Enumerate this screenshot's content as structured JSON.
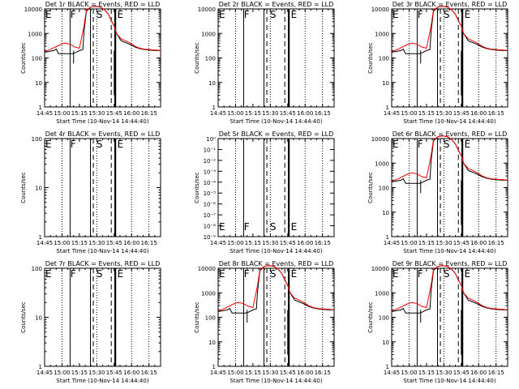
{
  "figure": {
    "time_label": "Start Time (10-Nov-14 14:44:40)",
    "x_ticks": [
      "14:45",
      "15:00",
      "15:15",
      "15:30",
      "15:45",
      "16:00",
      "16:15"
    ],
    "y_label": "Counts/sec",
    "interval_letters": [
      "E",
      "F",
      "S",
      "E"
    ],
    "colors": {
      "events": "#000000",
      "lld": "#ff0000",
      "background": "#ffffff"
    }
  },
  "chart_data": [
    {
      "type": "line",
      "title": "Det 1r BLACK = Events, RED = LLD",
      "xlabel": "Start Time (10-Nov-14 14:44:40)",
      "ylabel": "Counts/sec",
      "x_range": [
        "14:45",
        "16:25"
      ],
      "y_scale": "log",
      "y_ticks": [
        "1",
        "10",
        "100",
        "1000",
        "10000"
      ],
      "letters": [
        "E",
        "F",
        "S",
        "E"
      ],
      "empty": false,
      "spikes": true
    },
    {
      "type": "line",
      "title": "Det 2r BLACK = Events, RED = LLD",
      "xlabel": "Start Time (10-Nov-14 14:44:40)",
      "ylabel": "Counts/sec",
      "x_range": [
        "14:45",
        "16:25"
      ],
      "y_scale": "log",
      "y_ticks": [
        "1",
        "10",
        "100",
        "1000",
        "10000"
      ],
      "letters": [
        "E",
        "F",
        "S",
        "E"
      ],
      "empty": true
    },
    {
      "type": "line",
      "title": "Det 3r BLACK = Events, RED = LLD",
      "xlabel": "Start Time (10-Nov-14 14:44:40)",
      "ylabel": "Counts/sec",
      "x_range": [
        "14:45",
        "16:25"
      ],
      "y_scale": "log",
      "y_ticks": [
        "1",
        "10",
        "100",
        "1000",
        "10000"
      ],
      "letters": [
        "E",
        "F",
        "S",
        "E"
      ],
      "empty": false,
      "spikes": true
    },
    {
      "type": "line",
      "title": "Det 4r BLACK = Events, RED = LLD",
      "xlabel": "Start Time (10-Nov-14 14:44:40)",
      "ylabel": "Counts/sec",
      "x_range": [
        "14:45",
        "16:25"
      ],
      "y_scale": "log",
      "y_ticks": [
        "1",
        "10",
        "100"
      ],
      "letters": [
        "E",
        "F",
        "S",
        "E"
      ],
      "empty": true
    },
    {
      "type": "line",
      "title": "Det 5r BLACK = Events, RED = LLD",
      "xlabel": "Start Time (10-Nov-14 14:44:40)",
      "ylabel": "Counts/sec",
      "x_range": [
        "14:45",
        "16:25"
      ],
      "y_scale": "log",
      "y_ticks": [
        "10⁻⁹",
        "10⁻⁸",
        "10⁻⁷",
        "10⁻⁶",
        "10⁻⁵",
        "10⁻⁴",
        "10⁻³",
        "10⁻²",
        "10⁻¹",
        "10⁰"
      ],
      "letters": [
        "E",
        "F",
        "S",
        "E"
      ],
      "empty": true
    },
    {
      "type": "line",
      "title": "Det 6r BLACK = Events, RED = LLD",
      "xlabel": "Start Time (10-Nov-14 14:44:40)",
      "ylabel": "Counts/sec",
      "x_range": [
        "14:45",
        "16:25"
      ],
      "y_scale": "log",
      "y_ticks": [
        "1",
        "10",
        "100",
        "1000",
        "10000"
      ],
      "letters": [
        "E",
        "F",
        "S",
        "E"
      ],
      "empty": false,
      "spikes": true
    },
    {
      "type": "line",
      "title": "Det 7r BLACK = Events, RED = LLD",
      "xlabel": "Start Time (10-Nov-14 14:44:40)",
      "ylabel": "Counts/sec",
      "x_range": [
        "14:45",
        "16:25"
      ],
      "y_scale": "log",
      "y_ticks": [
        "1",
        "10",
        "100"
      ],
      "letters": [
        "E",
        "F",
        "S",
        "E"
      ],
      "empty": true
    },
    {
      "type": "line",
      "title": "Det 8r BLACK = Events, RED = LLD",
      "xlabel": "Start Time (10-Nov-14 14:44:40)",
      "ylabel": "Counts/sec",
      "x_range": [
        "14:45",
        "16:25"
      ],
      "y_scale": "log",
      "y_ticks": [
        "1",
        "10",
        "100",
        "1000",
        "10000"
      ],
      "letters": [
        "E",
        "F",
        "S",
        "E"
      ],
      "empty": false,
      "spikes": true
    },
    {
      "type": "line",
      "title": "Det 9r BLACK = Events, RED = LLD",
      "xlabel": "Start Time (10-Nov-14 14:44:40)",
      "ylabel": "Counts/sec",
      "x_range": [
        "14:45",
        "16:25"
      ],
      "y_scale": "log",
      "y_ticks": [
        "1",
        "10",
        "100",
        "1000",
        "10000"
      ],
      "letters": [
        "E",
        "F",
        "S",
        "E"
      ],
      "empty": false,
      "spikes": true
    }
  ],
  "series_shape": {
    "lld": [
      [
        0,
        180
      ],
      [
        5,
        220
      ],
      [
        10,
        290
      ],
      [
        15,
        380
      ],
      [
        18,
        400
      ],
      [
        22,
        360
      ],
      [
        26,
        280
      ],
      [
        30,
        250
      ],
      [
        34,
        2000
      ],
      [
        36,
        9000
      ],
      [
        40,
        12000
      ],
      [
        44,
        13000
      ],
      [
        48,
        12000
      ],
      [
        52,
        9000
      ],
      [
        55,
        6000
      ],
      [
        58,
        3000
      ],
      [
        60,
        2000
      ],
      [
        62,
        1000
      ],
      [
        66,
        600
      ],
      [
        70,
        500
      ],
      [
        74,
        400
      ],
      [
        78,
        300
      ],
      [
        82,
        250
      ],
      [
        86,
        230
      ],
      [
        90,
        220
      ],
      [
        96,
        210
      ],
      [
        100,
        200
      ]
    ],
    "events": [
      [
        0,
        170
      ],
      [
        5,
        190
      ],
      [
        8,
        200
      ],
      [
        10,
        230
      ],
      [
        12,
        150
      ],
      [
        16,
        150
      ],
      [
        20,
        150
      ],
      [
        24,
        150
      ],
      [
        26,
        160
      ],
      [
        30,
        200
      ],
      [
        33,
        220
      ],
      [
        34,
        1200
      ],
      [
        36,
        8000
      ],
      [
        40,
        12000
      ],
      [
        44,
        13000
      ],
      [
        48,
        12000
      ],
      [
        52,
        9000
      ],
      [
        55,
        6000
      ],
      [
        58,
        3000
      ],
      [
        60,
        2000
      ],
      [
        62,
        1000
      ],
      [
        66,
        500
      ],
      [
        70,
        420
      ],
      [
        74,
        350
      ],
      [
        78,
        280
      ],
      [
        82,
        240
      ],
      [
        86,
        220
      ],
      [
        90,
        210
      ],
      [
        96,
        200
      ],
      [
        100,
        200
      ]
    ],
    "dips": [
      [
        25,
        60
      ],
      [
        60,
        3
      ],
      [
        61,
        4
      ]
    ]
  }
}
